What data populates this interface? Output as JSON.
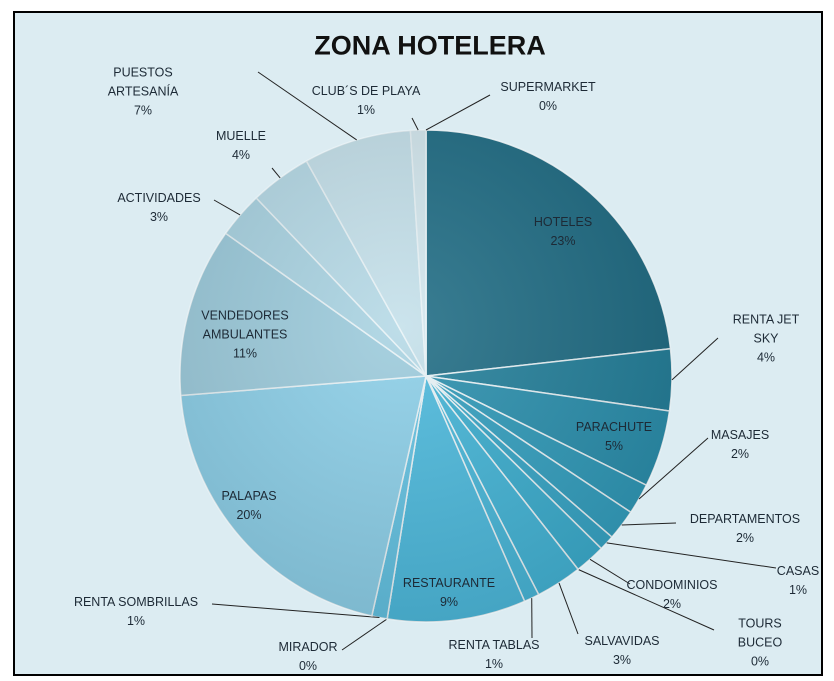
{
  "chart_data": {
    "type": "pie",
    "title": "ZONA HOTELERA",
    "categories": [
      "HOTELES",
      "RENTA  JET SKY",
      "PARACHUTE",
      "MASAJES",
      "DEPARTAMENTOS",
      "CASAS",
      "CONDOMINIOS",
      "TOURS BUCEO",
      "SALVAVIDAS",
      "RENTA  TABLAS",
      "RESTAURANTE",
      "MIRADOR",
      "RENTA  SOMBRILLAS",
      "PALAPAS",
      "VENDEDORES\nAMBULANTES",
      "ACTIVIDADES",
      "MUELLE",
      "PUESTOS\nARTESANÍA",
      "CLUB´S  DE PLAYA",
      "SUPERMARKET"
    ],
    "values": [
      23,
      4,
      5,
      2,
      2,
      1,
      2,
      0,
      3,
      1,
      9,
      0,
      1,
      20,
      11,
      3,
      4,
      7,
      1,
      0
    ],
    "value_labels": [
      "23%",
      "4%",
      "5%",
      "2%",
      "2%",
      "1%",
      "2%",
      "0%",
      "3%",
      "1%",
      "9%",
      "0%",
      "1%",
      "20%",
      "11%",
      "3%",
      "4%",
      "7%",
      "1%",
      "0%"
    ],
    "colors": [
      "#1f6c84",
      "#237f9a",
      "#2a8fad",
      "#2f99b8",
      "#339fbf",
      "#37a5c6",
      "#3badce",
      "#3fb1d2",
      "#43b4d6",
      "#48b7d9",
      "#4cb9dc",
      "#56bddf",
      "#62c1e1",
      "#8ccfe8",
      "#9ccbdc",
      "#a9d3e2",
      "#b5d9e6",
      "#c4e0ea",
      "#d3e7ee",
      "#e0edf2"
    ]
  }
}
